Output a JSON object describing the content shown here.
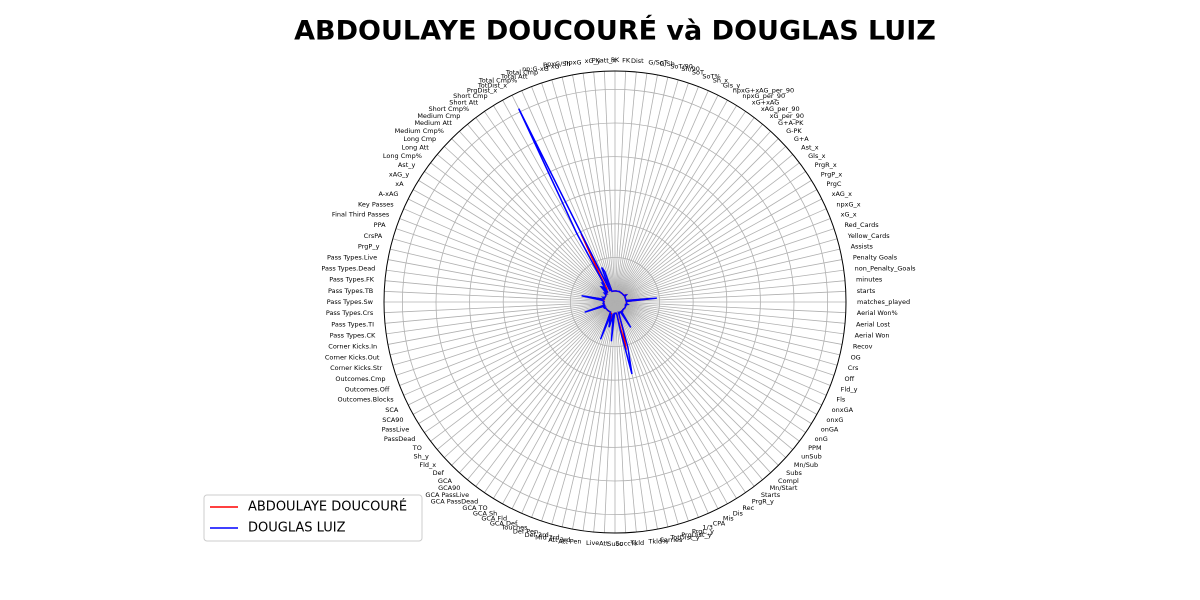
{
  "chart_data": {
    "type": "radar",
    "title": "ABDOULAYE DOUCOURÉ và DOUGLAS LUIZ",
    "categories": [
      "matches_played",
      "starts",
      "minutes",
      "non_Penalty_Goals",
      "Penalty Goals",
      "Assists",
      "Yellow_Cards",
      "Red_Cards",
      "xG_x",
      "npxG_x",
      "xAG_x",
      "PrgC",
      "PrgP_x",
      "PrgR_x",
      "Gls_x",
      "Ast_x",
      "G+A",
      "G-PK",
      "G+A-PK",
      "xG_per_90",
      "xAG_per_90",
      "xG+xAG",
      "npxG_per_90",
      "npxG+xAG_per_90",
      "Gls_y",
      "Sh_x",
      "SoT%",
      "SoT",
      "Sh/90",
      "SoT/90",
      "G/Sh",
      "G/SoT",
      "Dist",
      "FK",
      "PK",
      "PKatt_x",
      "xG_y",
      "npxG",
      "npxG/Sh",
      "G-xG",
      "np:G-xG",
      "Total Cmp",
      "Total Att",
      "Total Cmp%",
      "TotDist_x",
      "PrgDist_x",
      "Short Cmp",
      "Short Att",
      "Short Cmp%",
      "Medium Cmp",
      "Medium Att",
      "Medium Cmp%",
      "Long Cmp",
      "Long Att",
      "Long Cmp%",
      "Ast_y",
      "xAG_y",
      "xA",
      "A-xAG",
      "Key Passes",
      "Final Third Passes",
      "PPA",
      "CrsPA",
      "PrgP_y",
      "Pass Types.Live",
      "Pass Types.Dead",
      "Pass Types.FK",
      "Pass Types.TB",
      "Pass Types.Sw",
      "Pass Types.Crs",
      "Pass Types.TI",
      "Pass Types.CK",
      "Corner Kicks.In",
      "Corner Kicks.Out",
      "Corner Kicks.Str",
      "Outcomes.Cmp",
      "Outcomes.Off",
      "Outcomes.Blocks",
      "SCA",
      "SCA90",
      "PassLive",
      "PassDead",
      "TO",
      "Sh_y",
      "Fld_x",
      "Def",
      "GCA",
      "GCA90",
      "GCA PassLive",
      "GCA PassDead",
      "GCA TO",
      "GCA Sh",
      "GCA Fld",
      "GCA Def",
      "Touches",
      "Def Pen",
      "Def 3rd",
      "Mid 3rd",
      "Att 3rd",
      "Att Pen",
      "Live",
      "Att",
      "Succ",
      "Succ%",
      "Tkld",
      "Tkld%",
      "Carries",
      "TotDist_y",
      "PrgDist_y",
      "PrgC_y",
      "1/3",
      "CPA",
      "Mis",
      "Dis",
      "Rec",
      "PrgR_y",
      "Starts",
      "Mn/Start",
      "Compl",
      "Subs",
      "Mn/Sub",
      "unSub",
      "PPM",
      "onG",
      "onGA",
      "onxG",
      "onxGA",
      "Fls",
      "Fld_y",
      "Off",
      "Crs",
      "OG",
      "Recov",
      "Aerial Won",
      "Aerial Lost",
      "Aerial Won%"
    ],
    "series": [
      {
        "name": "ABDOULAYE DOUCOURÉ",
        "color": "#ff0000",
        "values": [
          32,
          30,
          2400,
          7,
          0,
          2,
          6,
          0,
          5.5,
          5.5,
          2.5,
          25,
          80,
          150,
          0.26,
          0.07,
          0.34,
          0.26,
          0.34,
          0.2,
          0.09,
          0.3,
          0.2,
          0.3,
          7,
          45,
          33,
          15,
          1.7,
          0.56,
          0.16,
          0.47,
          14,
          0,
          0,
          0,
          5.5,
          5.5,
          0.12,
          1.5,
          1.5,
          1000,
          1300,
          77,
          6500,
          2000,
          500,
          600,
          83,
          380,
          450,
          84,
          60,
          100,
          60,
          2,
          2.5,
          2,
          -0.5,
          25,
          50,
          15,
          2,
          80,
          1200,
          80,
          10,
          3,
          10,
          20,
          15,
          5,
          1,
          2,
          1,
          1000,
          8,
          30,
          70,
          2.6,
          50,
          6,
          4,
          7,
          3,
          1,
          12,
          0.45,
          8,
          1,
          0,
          2,
          1,
          0,
          1700,
          40,
          350,
          850,
          500,
          90,
          1650,
          30,
          12,
          40,
          15,
          50,
          900,
          3800,
          1900,
          25,
          35,
          12,
          40,
          30,
          1200,
          150,
          30,
          80,
          20,
          2,
          20,
          1,
          1.3,
          40,
          40,
          38,
          42,
          30,
          25,
          5,
          15,
          0,
          150,
          40,
          45,
          47
        ]
      },
      {
        "name": "DOUGLAS LUIZ",
        "color": "#0000ff",
        "values": [
          36,
          35,
          3100,
          5,
          1,
          3,
          9,
          0,
          3.5,
          2.7,
          4.2,
          40,
          220,
          80,
          0.2,
          0.1,
          0.3,
          0.2,
          0.3,
          0.1,
          0.12,
          0.22,
          0.08,
          0.2,
          6,
          38,
          34,
          13,
          1.1,
          0.38,
          0.13,
          0.38,
          21,
          5,
          1,
          1,
          3.5,
          2.7,
          0.07,
          2.5,
          2.3,
          2100,
          2600,
          82,
          20500,
          6800,
          1000,
          1150,
          90,
          850,
          950,
          89,
          190,
          290,
          65,
          3,
          4.2,
          5,
          -1.2,
          44,
          190,
          18,
          5,
          220,
          2300,
          280,
          90,
          2,
          30,
          60,
          25,
          95,
          30,
          40,
          5,
          2100,
          10,
          40,
          120,
          3.5,
          85,
          25,
          3,
          5,
          2,
          2,
          10,
          0.3,
          7,
          1,
          0,
          1,
          1,
          0,
          2900,
          150,
          800,
          1500,
          700,
          60,
          2850,
          40,
          20,
          50,
          20,
          50,
          1800,
          6300,
          3600,
          40,
          110,
          10,
          40,
          35,
          1900,
          80,
          35,
          86,
          30,
          1,
          15,
          0,
          1.5,
          55,
          40,
          50,
          45,
          30,
          50,
          2,
          60,
          0,
          190,
          60,
          60,
          50
        ]
      }
    ],
    "ylim": [
      -1100,
      22000
    ],
    "legend": "lower left"
  }
}
